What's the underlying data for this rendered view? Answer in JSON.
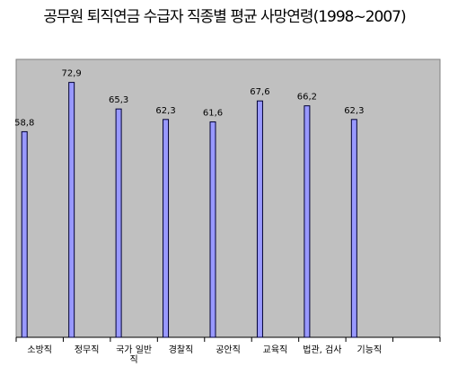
{
  "chart_data": {
    "type": "bar",
    "title": "공무원 퇴직연금 수급자 직종별 평균 사망연령(1998~2007)",
    "categories": [
      "소방직",
      "정무직",
      "국가 일반직",
      "경찰직",
      "공안직",
      "교육직",
      "법관, 검사",
      "기능직"
    ],
    "values": [
      58.8,
      72.9,
      65.3,
      62.3,
      61.6,
      67.6,
      66.2,
      62.3
    ],
    "value_labels": [
      "58,8",
      "72,9",
      "65,3",
      "62,3",
      "61,6",
      "67,6",
      "66,2",
      "62,3"
    ],
    "color": "#9999ff",
    "ylim": [
      0,
      80
    ]
  }
}
